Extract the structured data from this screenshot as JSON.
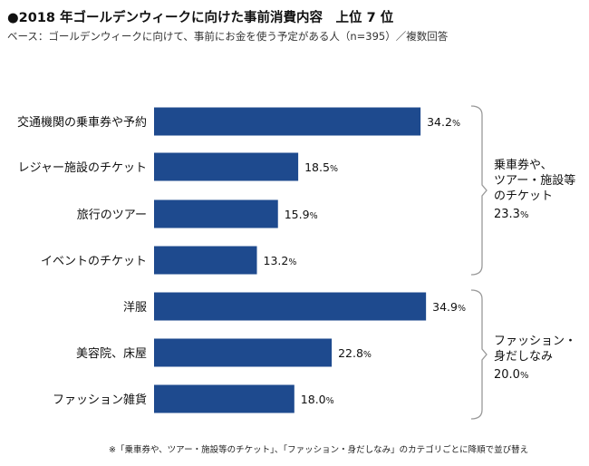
{
  "title": "●2018 年ゴールデンウィークに向けた事前消費内容　上位 7 位",
  "subtitle": "ベース：ゴールデンウィークに向けて、事前にお金を使う予定がある人（n=395）／複数回答",
  "footnote": "※「乗車券や、ツアー・施設等のチケット」、「ファッション・身だしなみ」のカテゴリごとに降順で並び替え",
  "colors": {
    "bar": "#1e4a8e",
    "bracket": "#999999"
  },
  "groups": [
    {
      "lines": [
        "乗車券や、",
        "ツアー・施設等",
        "のチケット"
      ],
      "value": "23.3",
      "unit": "%"
    },
    {
      "lines": [
        "ファッション・",
        "身だしなみ"
      ],
      "value": "20.0",
      "unit": "%"
    }
  ],
  "chart_data": {
    "type": "bar",
    "orientation": "horizontal",
    "categories": [
      "交通機関の乗車券や予約",
      "レジャー施設のチケット",
      "旅行のツアー",
      "イベントのチケット",
      "洋服",
      "美容院、床屋",
      "ファッション雑貨"
    ],
    "values": [
      34.2,
      18.5,
      15.9,
      13.2,
      34.9,
      22.8,
      18.0
    ],
    "value_labels": [
      "34.2",
      "18.5",
      "15.9",
      "13.2",
      "34.9",
      "22.8",
      "18.0"
    ],
    "unit": "%",
    "xlim": [
      0,
      35
    ],
    "grid": false,
    "legend": "none"
  }
}
